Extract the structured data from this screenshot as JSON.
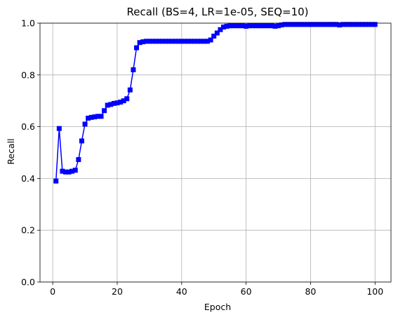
{
  "chart_data": {
    "type": "line",
    "title": "Recall (BS=4, LR=1e-05, SEQ=10)",
    "xlabel": "Epoch",
    "ylabel": "Recall",
    "xlim": [
      -3.95,
      104.95
    ],
    "ylim": [
      0.0,
      1.0
    ],
    "x_ticks": [
      0,
      20,
      40,
      60,
      80,
      100
    ],
    "y_ticks": [
      0.0,
      0.2,
      0.4,
      0.6,
      0.8,
      1.0
    ],
    "x_tick_labels": [
      "0",
      "20",
      "40",
      "60",
      "80",
      "100"
    ],
    "y_tick_labels": [
      "0.0",
      "0.2",
      "0.4",
      "0.6",
      "0.8",
      "1.0"
    ],
    "grid": true,
    "legend": "none",
    "series": [
      {
        "color": "#0000ff",
        "marker": "square",
        "x": [
          1,
          2,
          3,
          4,
          5,
          6,
          7,
          8,
          9,
          10,
          11,
          12,
          13,
          14,
          15,
          16,
          17,
          18,
          19,
          20,
          21,
          22,
          23,
          24,
          25,
          26,
          27,
          28,
          29,
          30,
          31,
          32,
          33,
          34,
          35,
          36,
          37,
          38,
          39,
          40,
          41,
          42,
          43,
          44,
          45,
          46,
          47,
          48,
          49,
          50,
          51,
          52,
          53,
          54,
          55,
          56,
          57,
          58,
          59,
          60,
          61,
          62,
          63,
          64,
          65,
          66,
          67,
          68,
          69,
          70,
          71,
          72,
          73,
          74,
          75,
          76,
          77,
          78,
          79,
          80,
          81,
          82,
          83,
          84,
          85,
          86,
          87,
          88,
          89,
          90,
          91,
          92,
          93,
          94,
          95,
          96,
          97,
          98,
          99,
          100
        ],
        "values": [
          0.39,
          0.593,
          0.428,
          0.425,
          0.425,
          0.428,
          0.432,
          0.473,
          0.545,
          0.61,
          0.633,
          0.636,
          0.638,
          0.64,
          0.64,
          0.662,
          0.683,
          0.686,
          0.69,
          0.692,
          0.695,
          0.7,
          0.708,
          0.742,
          0.82,
          0.905,
          0.925,
          0.928,
          0.93,
          0.93,
          0.93,
          0.93,
          0.93,
          0.93,
          0.93,
          0.93,
          0.93,
          0.93,
          0.93,
          0.93,
          0.93,
          0.93,
          0.93,
          0.93,
          0.93,
          0.93,
          0.93,
          0.93,
          0.935,
          0.95,
          0.962,
          0.975,
          0.985,
          0.988,
          0.99,
          0.99,
          0.99,
          0.99,
          0.99,
          0.988,
          0.99,
          0.99,
          0.99,
          0.99,
          0.99,
          0.99,
          0.99,
          0.99,
          0.988,
          0.99,
          0.993,
          0.995,
          0.995,
          0.995,
          0.995,
          0.995,
          0.995,
          0.995,
          0.995,
          0.995,
          0.995,
          0.995,
          0.995,
          0.995,
          0.995,
          0.995,
          0.995,
          0.995,
          0.993,
          0.995,
          0.995,
          0.995,
          0.995,
          0.995,
          0.995,
          0.995,
          0.995,
          0.995,
          0.995,
          0.995
        ]
      }
    ]
  }
}
